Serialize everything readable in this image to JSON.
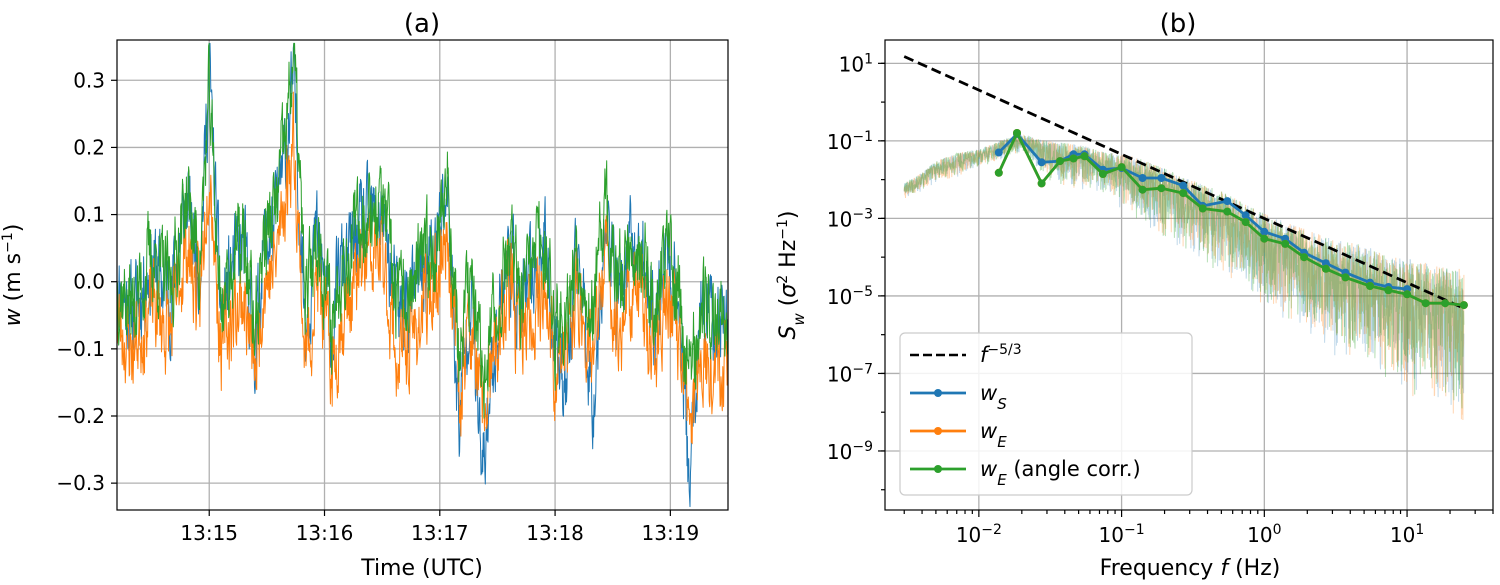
{
  "chart_data": [
    {
      "panel": "a",
      "type": "line",
      "title": "(a)",
      "xlabel": "Time (UTC)",
      "ylabel": "w (m s⁻¹)",
      "x_ticks": [
        "13:15",
        "13:16",
        "13:17",
        "13:18",
        "13:19"
      ],
      "xlim": [
        "13:14:12",
        "13:19:30"
      ],
      "ylim": [
        -0.34,
        0.36
      ],
      "y_ticks": [
        -0.3,
        -0.2,
        -0.1,
        0.0,
        0.1,
        0.2,
        0.3
      ],
      "y_tick_labels": [
        "−0.3",
        "−0.2",
        "−0.1",
        "0.0",
        "0.1",
        "0.2",
        "0.3"
      ],
      "grid": true,
      "series": [
        {
          "color": "#1f77b4",
          "x": [
            "13:14:12",
            "13:14:20",
            "13:14:30",
            "13:14:40",
            "13:14:48",
            "13:14:55",
            "13:15:00",
            "13:15:06",
            "13:15:12",
            "13:15:18",
            "13:15:24",
            "13:15:28",
            "13:15:34",
            "13:15:40",
            "13:15:44",
            "13:15:50",
            "13:15:56",
            "13:16:00",
            "13:16:04",
            "13:16:08",
            "13:16:14",
            "13:16:20",
            "13:16:30",
            "13:16:38",
            "13:16:46",
            "13:16:52",
            "13:16:58",
            "13:17:04",
            "13:17:10",
            "13:17:16",
            "13:17:22",
            "13:17:30",
            "13:17:36",
            "13:17:42",
            "13:17:48",
            "13:17:54",
            "13:18:00",
            "13:18:06",
            "13:18:12",
            "13:18:20",
            "13:18:26",
            "13:18:32",
            "13:18:40",
            "13:18:46",
            "13:18:52",
            "13:18:58",
            "13:19:04",
            "13:19:10",
            "13:19:16",
            "13:19:22",
            "13:19:30"
          ],
          "y": [
            0.0,
            -0.05,
            0.03,
            -0.02,
            0.12,
            0.02,
            0.32,
            -0.05,
            0.02,
            0.05,
            -0.1,
            0.05,
            0.08,
            0.2,
            0.3,
            -0.06,
            0.07,
            0.0,
            -0.08,
            0.02,
            0.04,
            0.08,
            0.1,
            -0.05,
            -0.02,
            0.02,
            0.05,
            0.14,
            -0.22,
            0.0,
            -0.3,
            -0.05,
            0.05,
            -0.05,
            0.01,
            0.06,
            -0.08,
            -0.15,
            0.04,
            -0.18,
            0.1,
            -0.02,
            0.05,
            0.03,
            -0.06,
            0.05,
            -0.02,
            -0.3,
            -0.05,
            -0.06,
            -0.05
          ]
        },
        {
          "color": "#ff7f0e",
          "x": [
            "13:14:12",
            "13:14:20",
            "13:14:30",
            "13:14:40",
            "13:14:48",
            "13:14:55",
            "13:15:00",
            "13:15:06",
            "13:15:12",
            "13:15:18",
            "13:15:24",
            "13:15:28",
            "13:15:34",
            "13:15:40",
            "13:15:44",
            "13:15:50",
            "13:15:56",
            "13:16:00",
            "13:16:04",
            "13:16:08",
            "13:16:14",
            "13:16:20",
            "13:16:30",
            "13:16:38",
            "13:16:46",
            "13:16:52",
            "13:16:58",
            "13:17:04",
            "13:17:10",
            "13:17:16",
            "13:17:22",
            "13:17:30",
            "13:17:36",
            "13:17:42",
            "13:17:48",
            "13:17:54",
            "13:18:00",
            "13:18:06",
            "13:18:12",
            "13:18:20",
            "13:18:26",
            "13:18:32",
            "13:18:40",
            "13:18:46",
            "13:18:52",
            "13:18:58",
            "13:19:04",
            "13:19:10",
            "13:19:16",
            "13:19:22",
            "13:19:30"
          ],
          "y": [
            -0.06,
            -0.1,
            -0.03,
            -0.08,
            0.06,
            -0.04,
            0.2,
            -0.1,
            -0.05,
            -0.02,
            -0.14,
            0.0,
            0.02,
            0.14,
            0.22,
            -0.12,
            0.0,
            -0.06,
            -0.14,
            -0.06,
            -0.02,
            0.02,
            0.04,
            -0.12,
            -0.08,
            -0.04,
            0.0,
            0.08,
            -0.16,
            -0.06,
            -0.2,
            -0.1,
            0.0,
            -0.1,
            -0.05,
            0.0,
            -0.14,
            -0.1,
            -0.02,
            -0.12,
            0.04,
            -0.08,
            -0.01,
            -0.03,
            -0.12,
            -0.01,
            -0.08,
            -0.22,
            -0.1,
            -0.12,
            -0.11
          ]
        },
        {
          "color": "#2ca02c",
          "x": [
            "13:14:12",
            "13:14:20",
            "13:14:30",
            "13:14:40",
            "13:14:48",
            "13:14:55",
            "13:15:00",
            "13:15:06",
            "13:15:12",
            "13:15:18",
            "13:15:24",
            "13:15:28",
            "13:15:34",
            "13:15:40",
            "13:15:44",
            "13:15:50",
            "13:15:56",
            "13:16:00",
            "13:16:04",
            "13:16:08",
            "13:16:14",
            "13:16:20",
            "13:16:30",
            "13:16:38",
            "13:16:46",
            "13:16:52",
            "13:16:58",
            "13:17:04",
            "13:17:10",
            "13:17:16",
            "13:17:22",
            "13:17:30",
            "13:17:36",
            "13:17:42",
            "13:17:48",
            "13:17:54",
            "13:18:00",
            "13:18:06",
            "13:18:12",
            "13:18:20",
            "13:18:26",
            "13:18:32",
            "13:18:40",
            "13:18:46",
            "13:18:52",
            "13:18:58",
            "13:19:04",
            "13:19:10",
            "13:19:16",
            "13:19:22",
            "13:19:30"
          ],
          "y": [
            0.0,
            -0.04,
            0.04,
            -0.01,
            0.13,
            0.03,
            0.28,
            -0.04,
            0.03,
            0.06,
            -0.08,
            0.06,
            0.1,
            0.22,
            0.35,
            -0.04,
            0.08,
            0.01,
            -0.07,
            0.03,
            0.05,
            0.1,
            0.12,
            -0.04,
            -0.01,
            0.03,
            0.06,
            0.16,
            -0.12,
            0.01,
            -0.14,
            -0.04,
            0.06,
            -0.04,
            0.02,
            0.07,
            -0.07,
            -0.04,
            0.05,
            -0.06,
            0.12,
            -0.01,
            0.06,
            0.04,
            -0.05,
            0.06,
            -0.01,
            -0.14,
            -0.04,
            -0.05,
            -0.04
          ]
        }
      ]
    },
    {
      "panel": "b",
      "type": "line",
      "title": "(b)",
      "xlabel": "Frequency f (Hz)",
      "ylabel": "S_w (σ² Hz⁻¹)",
      "x_scale": "log",
      "y_scale": "log",
      "xlim": [
        0.0022,
        40
      ],
      "ylim": [
        3e-11,
        40
      ],
      "x_ticks": [
        0.01,
        0.1,
        1,
        10
      ],
      "y_ticks": [
        1e-09,
        1e-07,
        1e-05,
        0.001,
        0.1,
        10
      ],
      "grid": true,
      "legend_position": "lower-left",
      "reference_line": {
        "label": "f⁻⁵ᐟ³",
        "color": "#000000",
        "style": "dashed",
        "x": [
          0.003,
          25
        ],
        "y": [
          15,
          4.8e-06
        ]
      },
      "raw_spectrum": {
        "x": [
          0.003,
          0.004,
          0.005,
          0.007,
          0.01,
          0.014,
          0.02,
          0.03,
          0.05,
          0.08,
          0.12,
          0.2,
          0.3,
          0.5,
          0.8,
          1.2,
          2,
          3,
          5,
          8,
          12,
          20,
          25
        ],
        "band_low": [
          0.003,
          0.005,
          0.008,
          0.01,
          0.02,
          0.03,
          0.05,
          0.01,
          0.005,
          0.003,
          0.001,
          0.0003,
          0.0001,
          3e-05,
          1e-05,
          3e-06,
          1e-06,
          3e-07,
          1e-07,
          5e-08,
          2e-08,
          1e-08,
          3e-09
        ],
        "band_high": [
          0.008,
          0.015,
          0.03,
          0.05,
          0.06,
          0.1,
          0.15,
          0.1,
          0.08,
          0.05,
          0.04,
          0.02,
          0.01,
          0.005,
          0.002,
          0.001,
          0.0005,
          0.0003,
          0.0002,
          0.0001,
          8e-05,
          5e-05,
          5e-05
        ]
      },
      "series": [
        {
          "name": "w_S",
          "color": "#1f77b4",
          "x": [
            0.0138,
            0.0185,
            0.0275,
            0.037,
            0.046,
            0.055,
            0.074,
            0.1,
            0.14,
            0.19,
            0.27,
            0.37,
            0.55,
            0.74,
            1.0,
            1.4,
            1.9,
            2.7,
            3.7,
            5.5,
            7.4,
            10
          ],
          "y": [
            0.05,
            0.15,
            0.028,
            0.03,
            0.045,
            0.045,
            0.018,
            0.02,
            0.011,
            0.011,
            0.007,
            0.0021,
            0.0028,
            0.0012,
            0.00045,
            0.0003,
            0.00013,
            7e-05,
            4e-05,
            2.2e-05,
            1.7e-05,
            1.5e-05
          ]
        },
        {
          "name": "w_E",
          "color": "#ff7f0e",
          "x": [
            0.0138,
            0.0185,
            0.0275,
            0.037,
            0.046,
            0.055,
            0.074,
            0.1,
            0.14,
            0.19,
            0.27,
            0.37,
            0.55,
            0.74,
            1.0,
            1.4,
            1.9,
            2.7,
            3.7,
            5.5,
            7.4,
            10,
            13.5,
            18.5,
            25
          ],
          "y": [
            0.015,
            0.16,
            0.008,
            0.03,
            0.035,
            0.04,
            0.014,
            0.021,
            0.0055,
            0.006,
            0.0045,
            0.0018,
            0.0015,
            0.0008,
            0.0003,
            0.00022,
            0.0001,
            5e-05,
            3e-05,
            1.8e-05,
            1.4e-05,
            1.1e-05,
            6.5e-06,
            6.5e-06,
            5.8e-06
          ]
        },
        {
          "name": "w_E (angle corr.)",
          "color": "#2ca02c",
          "x": [
            0.0138,
            0.0185,
            0.0275,
            0.037,
            0.046,
            0.055,
            0.074,
            0.1,
            0.14,
            0.19,
            0.27,
            0.37,
            0.55,
            0.74,
            1.0,
            1.4,
            1.9,
            2.7,
            3.7,
            5.5,
            7.4,
            10,
            13.5,
            18.5,
            25
          ],
          "y": [
            0.015,
            0.16,
            0.008,
            0.03,
            0.035,
            0.04,
            0.014,
            0.021,
            0.0055,
            0.006,
            0.0045,
            0.0018,
            0.0015,
            0.0008,
            0.0003,
            0.00022,
            0.0001,
            5e-05,
            3e-05,
            1.8e-05,
            1.4e-05,
            1.1e-05,
            6.5e-06,
            6.5e-06,
            5.8e-06
          ]
        }
      ]
    }
  ]
}
